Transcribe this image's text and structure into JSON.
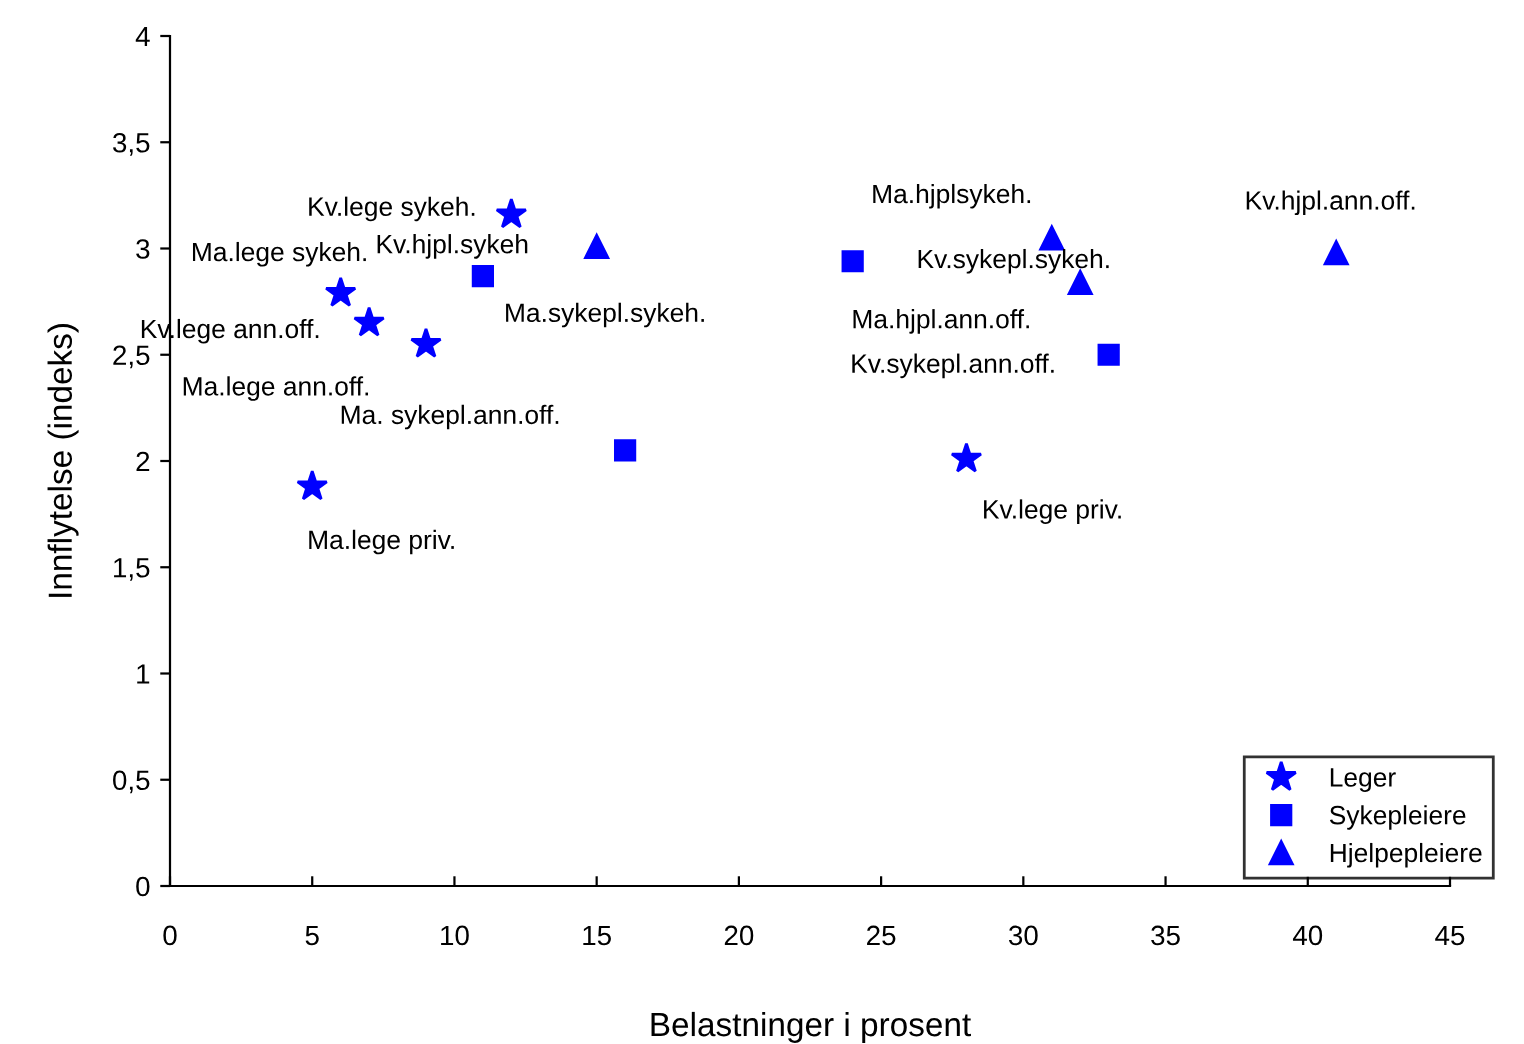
{
  "chart_data": {
    "type": "scatter",
    "xlabel": "Belastninger i prosent",
    "ylabel": "Innflytelse (indeks)",
    "xlim": [
      0,
      45
    ],
    "xticks": [
      0,
      5,
      10,
      15,
      20,
      25,
      30,
      35,
      40,
      45
    ],
    "ylim": [
      0,
      4
    ],
    "yticks": [
      0,
      {
        "value": 0.5,
        "label": "0,5"
      },
      1,
      {
        "value": 1.5,
        "label": "1,5"
      },
      2,
      {
        "value": 2.5,
        "label": "2,5"
      },
      3,
      {
        "value": 3.5,
        "label": "3,5"
      },
      4
    ],
    "grid": false,
    "legend": "bottom right",
    "series": [
      {
        "name": "Leger",
        "color": "#0000ff",
        "marker": "star",
        "x": [
          5,
          6,
          7,
          9,
          12,
          28
        ],
        "values": [
          1.88,
          2.79,
          2.65,
          2.55,
          3.16,
          2.01
        ]
      },
      {
        "name": "Sykepleiere",
        "color": "#0000ff",
        "marker": "square",
        "x": [
          11,
          16,
          24,
          33
        ],
        "values": [
          2.87,
          2.05,
          2.94,
          2.5
        ]
      },
      {
        "name": "Hjelpepleiere",
        "color": "#0000ff",
        "marker": "triangle",
        "x": [
          15,
          31,
          32,
          41
        ],
        "values": [
          3.01,
          3.05,
          2.84,
          2.98
        ]
      }
    ],
    "annotations": [
      {
        "text": "Ma.lege priv.",
        "x": 5,
        "y": 1.88
      },
      {
        "text": "Ma.lege sykeh.",
        "x": 6,
        "y": 2.79
      },
      {
        "text": "Kv.lege ann.off.",
        "x": 7,
        "y": 2.65
      },
      {
        "text": "Ma.lege ann.off.",
        "x": 9,
        "y": 2.55
      },
      {
        "text": "Kv.lege sykeh.",
        "x": 12,
        "y": 3.16
      },
      {
        "text": "Kv.lege priv.",
        "x": 28,
        "y": 2.01
      },
      {
        "text": "Ma.sykepl.sykeh.",
        "x": 11,
        "y": 2.87
      },
      {
        "text": "Ma. sykepl.ann.off.",
        "x": 16,
        "y": 2.05
      },
      {
        "text": "Kv.sykepl.sykeh.",
        "x": 24,
        "y": 2.94
      },
      {
        "text": "Kv.sykepl.ann.off.",
        "x": 33,
        "y": 2.5
      },
      {
        "text": "Kv.hjpl.sykeh",
        "x": 15,
        "y": 3.01
      },
      {
        "text": "Ma.hjplsykeh.",
        "x": 31,
        "y": 3.05
      },
      {
        "text": "Ma.hjpl.ann.off.",
        "x": 32,
        "y": 2.84
      },
      {
        "text": "Kv.hjpl.ann.off.",
        "x": 41,
        "y": 2.98
      }
    ]
  }
}
